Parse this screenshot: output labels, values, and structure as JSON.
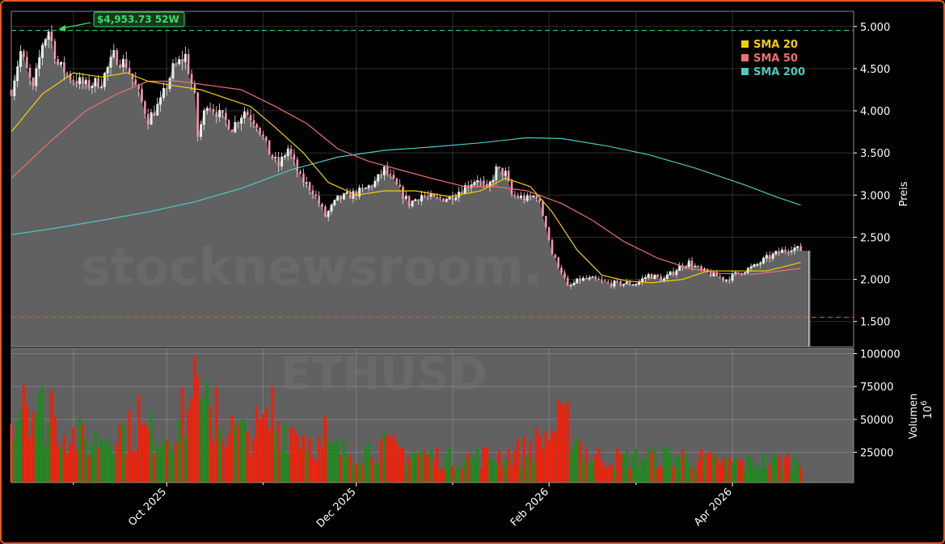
{
  "watermark": {
    "site": "stocknewsroom.",
    "ticker": "ETHUSD"
  },
  "high_label": {
    "value": "$4,953.73",
    "tag": "52W",
    "text": "$4,953.73 52W"
  },
  "colors": {
    "background": "#000000",
    "panel": "#616161",
    "up": "#1a8c1a",
    "down": "#ff1a00",
    "sma20": "#f5d000",
    "sma50": "#f07070",
    "sma200": "#4fc8c0",
    "high_line": "#3ddc6a",
    "low_line": "#e05050",
    "frame": "#e8571d"
  },
  "legend": [
    {
      "name": "SMA 20",
      "color": "#f5d000"
    },
    {
      "name": "SMA 50",
      "color": "#f07070"
    },
    {
      "name": "SMA 200",
      "color": "#4fc8c0"
    }
  ],
  "chart_data": {
    "type": "candlestick",
    "ticker": "ETHUSD",
    "price_axis": {
      "label": "Preis",
      "range": [
        1200,
        5180
      ],
      "ticks": [
        "1.500",
        "2.000",
        "2.500",
        "3.000",
        "3.500",
        "4.000",
        "4.500",
        "5.000"
      ],
      "tick_values": [
        1500,
        2000,
        2500,
        3000,
        3500,
        4000,
        4500,
        5000
      ]
    },
    "volume_axis": {
      "label": "Volumen",
      "unit": "10^6",
      "range": [
        2000,
        104000
      ],
      "ticks": [
        "25000",
        "50000",
        "75000",
        "100000"
      ],
      "tick_values": [
        25000,
        50000,
        75000,
        100000
      ]
    },
    "x_axis": {
      "ticks": [
        "Oct 2025",
        "Dec 2025",
        "Feb 2026",
        "Apr 2026"
      ],
      "tick_dates": [
        "2025-10-01",
        "2025-12-01",
        "2026-02-01",
        "2026-04-01"
      ],
      "minor_dates": [
        "2025-09-01",
        "2025-11-01",
        "2026-01-01",
        "2026-03-01"
      ],
      "start_date": "2025-08-12",
      "end_date": "2026-05-10"
    },
    "reference_lines": {
      "high_52w": 4953.73,
      "low_level": 1550
    },
    "grid": true,
    "legend_position": "top-right",
    "price_anchors": [
      [
        "2025-08-12",
        4250
      ],
      [
        "2025-08-15",
        4700
      ],
      [
        "2025-08-19",
        4250
      ],
      [
        "2025-08-22",
        4800
      ],
      [
        "2025-08-24",
        4950
      ],
      [
        "2025-08-27",
        4550
      ],
      [
        "2025-08-31",
        4400
      ],
      [
        "2025-09-05",
        4300
      ],
      [
        "2025-09-10",
        4350
      ],
      [
        "2025-09-14",
        4650
      ],
      [
        "2025-09-18",
        4550
      ],
      [
        "2025-09-22",
        4200
      ],
      [
        "2025-09-25",
        3900
      ],
      [
        "2025-09-29",
        4100
      ],
      [
        "2025-10-03",
        4500
      ],
      [
        "2025-10-07",
        4650
      ],
      [
        "2025-10-10",
        4150
      ],
      [
        "2025-10-11",
        3700
      ],
      [
        "2025-10-14",
        4100
      ],
      [
        "2025-10-18",
        3950
      ],
      [
        "2025-10-22",
        3800
      ],
      [
        "2025-10-26",
        4000
      ],
      [
        "2025-10-30",
        3850
      ],
      [
        "2025-11-03",
        3500
      ],
      [
        "2025-11-06",
        3350
      ],
      [
        "2025-11-09",
        3550
      ],
      [
        "2025-11-13",
        3200
      ],
      [
        "2025-11-17",
        3050
      ],
      [
        "2025-11-21",
        2750
      ],
      [
        "2025-11-25",
        2950
      ],
      [
        "2025-11-29",
        3000
      ],
      [
        "2025-12-03",
        3050
      ],
      [
        "2025-12-07",
        3150
      ],
      [
        "2025-12-10",
        3300
      ],
      [
        "2025-12-14",
        3100
      ],
      [
        "2025-12-18",
        2900
      ],
      [
        "2025-12-22",
        3000
      ],
      [
        "2025-12-26",
        2950
      ],
      [
        "2025-12-31",
        2970
      ],
      [
        "2026-01-05",
        3100
      ],
      [
        "2026-01-09",
        3200
      ],
      [
        "2026-01-12",
        3050
      ],
      [
        "2026-01-15",
        3300
      ],
      [
        "2026-01-18",
        3250
      ],
      [
        "2026-01-20",
        3000
      ],
      [
        "2026-01-25",
        2950
      ],
      [
        "2026-01-28",
        3000
      ],
      [
        "2026-01-31",
        2650
      ],
      [
        "2026-02-02",
        2300
      ],
      [
        "2026-02-05",
        2100
      ],
      [
        "2026-02-07",
        1900
      ],
      [
        "2026-02-11",
        2000
      ],
      [
        "2026-02-15",
        2000
      ],
      [
        "2026-02-20",
        1950
      ],
      [
        "2026-02-25",
        1950
      ],
      [
        "2026-03-01",
        1950
      ],
      [
        "2026-03-05",
        2050
      ],
      [
        "2026-03-10",
        2000
      ],
      [
        "2026-03-15",
        2150
      ],
      [
        "2026-03-18",
        2200
      ],
      [
        "2026-03-22",
        2100
      ],
      [
        "2026-03-26",
        2050
      ],
      [
        "2026-03-30",
        2000
      ],
      [
        "2026-04-03",
        2080
      ],
      [
        "2026-04-08",
        2150
      ],
      [
        "2026-04-12",
        2250
      ],
      [
        "2026-04-16",
        2320
      ],
      [
        "2026-04-20",
        2380
      ],
      [
        "2026-04-23",
        2350
      ]
    ],
    "sma20": [
      [
        "2025-08-12",
        3750
      ],
      [
        "2025-08-22",
        4200
      ],
      [
        "2025-09-01",
        4450
      ],
      [
        "2025-09-10",
        4400
      ],
      [
        "2025-09-18",
        4450
      ],
      [
        "2025-09-25",
        4350
      ],
      [
        "2025-10-03",
        4300
      ],
      [
        "2025-10-12",
        4250
      ],
      [
        "2025-10-20",
        4150
      ],
      [
        "2025-10-28",
        4050
      ],
      [
        "2025-11-05",
        3800
      ],
      [
        "2025-11-14",
        3500
      ],
      [
        "2025-11-22",
        3150
      ],
      [
        "2025-12-01",
        3000
      ],
      [
        "2025-12-10",
        3050
      ],
      [
        "2025-12-20",
        3050
      ],
      [
        "2025-12-31",
        2980
      ],
      [
        "2026-01-10",
        3050
      ],
      [
        "2026-01-18",
        3200
      ],
      [
        "2026-01-26",
        3100
      ],
      [
        "2026-02-02",
        2800
      ],
      [
        "2026-02-10",
        2350
      ],
      [
        "2026-02-18",
        2050
      ],
      [
        "2026-02-26",
        1980
      ],
      [
        "2026-03-06",
        1960
      ],
      [
        "2026-03-16",
        2000
      ],
      [
        "2026-03-24",
        2100
      ],
      [
        "2026-04-02",
        2100
      ],
      [
        "2026-04-12",
        2100
      ],
      [
        "2026-04-23",
        2200
      ]
    ],
    "sma50": [
      [
        "2025-08-12",
        3200
      ],
      [
        "2025-08-25",
        3650
      ],
      [
        "2025-09-05",
        4000
      ],
      [
        "2025-09-15",
        4200
      ],
      [
        "2025-09-25",
        4350
      ],
      [
        "2025-10-05",
        4350
      ],
      [
        "2025-10-15",
        4300
      ],
      [
        "2025-10-25",
        4250
      ],
      [
        "2025-11-05",
        4050
      ],
      [
        "2025-11-15",
        3850
      ],
      [
        "2025-11-25",
        3550
      ],
      [
        "2025-12-05",
        3400
      ],
      [
        "2025-12-15",
        3300
      ],
      [
        "2025-12-25",
        3200
      ],
      [
        "2026-01-05",
        3100
      ],
      [
        "2026-01-15",
        3100
      ],
      [
        "2026-01-25",
        3050
      ],
      [
        "2026-02-05",
        2900
      ],
      [
        "2026-02-15",
        2700
      ],
      [
        "2026-02-25",
        2450
      ],
      [
        "2026-03-08",
        2250
      ],
      [
        "2026-03-18",
        2130
      ],
      [
        "2026-03-28",
        2070
      ],
      [
        "2026-04-08",
        2060
      ],
      [
        "2026-04-23",
        2130
      ]
    ],
    "sma200": [
      [
        "2025-08-12",
        2530
      ],
      [
        "2025-08-25",
        2600
      ],
      [
        "2025-09-10",
        2700
      ],
      [
        "2025-09-25",
        2800
      ],
      [
        "2025-10-10",
        2920
      ],
      [
        "2025-10-25",
        3080
      ],
      [
        "2025-11-10",
        3300
      ],
      [
        "2025-11-25",
        3450
      ],
      [
        "2025-12-10",
        3530
      ],
      [
        "2025-12-25",
        3570
      ],
      [
        "2026-01-10",
        3620
      ],
      [
        "2026-01-25",
        3680
      ],
      [
        "2026-02-05",
        3670
      ],
      [
        "2026-02-20",
        3580
      ],
      [
        "2026-03-05",
        3480
      ],
      [
        "2026-03-20",
        3320
      ],
      [
        "2026-04-05",
        3120
      ],
      [
        "2026-04-15",
        2980
      ],
      [
        "2026-04-23",
        2880
      ]
    ],
    "volume_anchors": [
      [
        "2025-08-12",
        50000
      ],
      [
        "2025-08-16",
        70000
      ],
      [
        "2025-08-22",
        52000
      ],
      [
        "2025-08-29",
        42000
      ],
      [
        "2025-09-06",
        32000
      ],
      [
        "2025-09-14",
        42000
      ],
      [
        "2025-09-22",
        40000
      ],
      [
        "2025-10-01",
        40000
      ],
      [
        "2025-10-10",
        62000
      ],
      [
        "2025-10-18",
        45000
      ],
      [
        "2025-10-26",
        38000
      ],
      [
        "2025-11-04",
        48000
      ],
      [
        "2025-11-12",
        42000
      ],
      [
        "2025-11-20",
        28000
      ],
      [
        "2025-11-28",
        25000
      ],
      [
        "2025-12-08",
        30000
      ],
      [
        "2025-12-18",
        25000
      ],
      [
        "2025-12-31",
        20000
      ],
      [
        "2026-01-12",
        22000
      ],
      [
        "2026-01-22",
        25000
      ],
      [
        "2026-01-30",
        35000
      ],
      [
        "2026-02-06",
        50000
      ],
      [
        "2026-02-14",
        22000
      ],
      [
        "2026-02-24",
        20000
      ],
      [
        "2026-03-06",
        22000
      ],
      [
        "2026-03-16",
        22000
      ],
      [
        "2026-03-26",
        18000
      ],
      [
        "2026-04-05",
        17000
      ],
      [
        "2026-04-15",
        18000
      ],
      [
        "2026-04-23",
        20000
      ]
    ],
    "volume_spikes": [
      [
        "2025-08-16",
        76000
      ],
      [
        "2025-08-22",
        75000
      ],
      [
        "2025-08-25",
        72000
      ],
      [
        "2025-09-22",
        68000
      ],
      [
        "2025-10-10",
        98000
      ],
      [
        "2025-10-14",
        80000
      ],
      [
        "2025-10-17",
        75000
      ],
      [
        "2025-11-04",
        75000
      ],
      [
        "2025-11-21",
        52000
      ],
      [
        "2026-02-06",
        60000
      ],
      [
        "2026-02-07",
        64000
      ]
    ]
  }
}
